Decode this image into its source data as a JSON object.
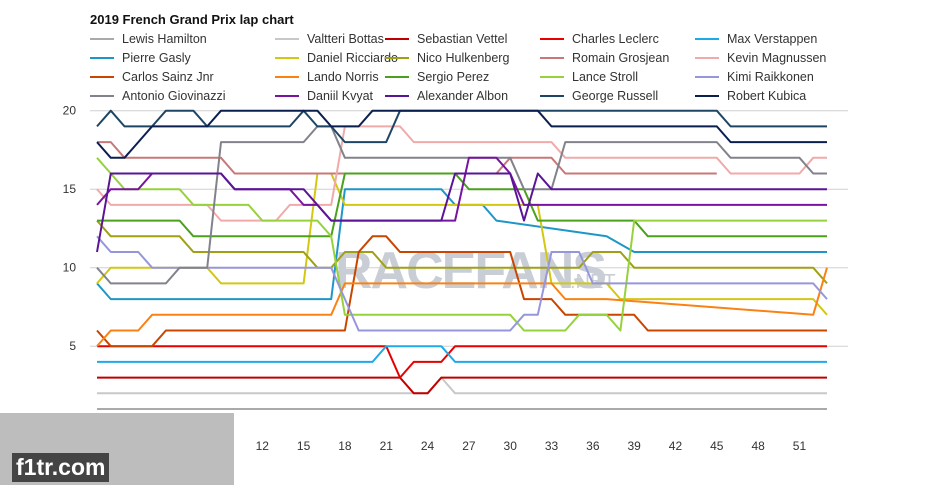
{
  "chart_data": {
    "type": "line",
    "title": "2019 French Grand Prix lap chart",
    "xlabel": "",
    "ylabel": "",
    "x_ticks": [
      12,
      15,
      18,
      21,
      24,
      27,
      30,
      33,
      36,
      39,
      42,
      45,
      48,
      51
    ],
    "y_ticks": [
      5,
      10,
      15,
      20
    ],
    "xlim": [
      0,
      53
    ],
    "ylim": [
      0.5,
      20.5
    ],
    "y_inverted": false,
    "grid": "horizontal",
    "legend_position": "top",
    "series": [
      {
        "name": "Lewis Hamilton",
        "color": "#aaaaaa",
        "points": [
          [
            0,
            1
          ],
          [
            53,
            1
          ]
        ]
      },
      {
        "name": "Valtteri Bottas",
        "color": "#c8c8c8",
        "points": [
          [
            0,
            2
          ],
          [
            24,
            2
          ],
          [
            25,
            3
          ],
          [
            26,
            2
          ],
          [
            53,
            2
          ]
        ]
      },
      {
        "name": "Sebastian Vettel",
        "color": "#c00000",
        "points": [
          [
            0,
            3
          ],
          [
            22,
            3
          ],
          [
            23,
            2
          ],
          [
            24,
            2
          ],
          [
            25,
            3
          ],
          [
            53,
            3
          ]
        ]
      },
      {
        "name": "Charles Leclerc",
        "color": "#e60000",
        "points": [
          [
            0,
            5
          ],
          [
            21,
            5
          ],
          [
            22,
            3
          ],
          [
            23,
            4
          ],
          [
            25,
            4
          ],
          [
            26,
            5
          ],
          [
            53,
            5
          ]
        ]
      },
      {
        "name": "Max Verstappen",
        "color": "#1eaae6",
        "points": [
          [
            0,
            4
          ],
          [
            20,
            4
          ],
          [
            21,
            5
          ],
          [
            25,
            5
          ],
          [
            26,
            4
          ],
          [
            53,
            4
          ]
        ]
      },
      {
        "name": "Pierre Gasly",
        "color": "#1e96c8",
        "points": [
          [
            0,
            9
          ],
          [
            1,
            8
          ],
          [
            17,
            8
          ],
          [
            18,
            15
          ],
          [
            25,
            15
          ],
          [
            26,
            14
          ],
          [
            28,
            14
          ],
          [
            29,
            13
          ],
          [
            37,
            12
          ],
          [
            39,
            11
          ],
          [
            53,
            11
          ]
        ]
      },
      {
        "name": "Daniel Ricciardo",
        "color": "#d2c814",
        "points": [
          [
            0,
            9
          ],
          [
            1,
            10
          ],
          [
            8,
            10
          ],
          [
            9,
            9
          ],
          [
            15,
            9
          ],
          [
            16,
            16
          ],
          [
            17,
            16
          ],
          [
            18,
            14
          ],
          [
            32,
            14
          ],
          [
            33,
            9
          ],
          [
            37,
            9
          ],
          [
            38,
            8
          ],
          [
            52,
            8
          ],
          [
            53,
            7
          ]
        ]
      },
      {
        "name": "Nico Hulkenberg",
        "color": "#a0a014",
        "points": [
          [
            0,
            13
          ],
          [
            1,
            12
          ],
          [
            6,
            12
          ],
          [
            7,
            11
          ],
          [
            15,
            11
          ],
          [
            16,
            10
          ],
          [
            17,
            10
          ],
          [
            18,
            11
          ],
          [
            20,
            11
          ],
          [
            21,
            10
          ],
          [
            30,
            10
          ],
          [
            31,
            10
          ],
          [
            35,
            10
          ],
          [
            36,
            11
          ],
          [
            38,
            11
          ],
          [
            39,
            10
          ],
          [
            52,
            10
          ],
          [
            53,
            9
          ]
        ]
      },
      {
        "name": "Romain Grosjean",
        "color": "#c87878",
        "points": [
          [
            0,
            18
          ],
          [
            1,
            18
          ],
          [
            2,
            17
          ],
          [
            9,
            17
          ],
          [
            10,
            16
          ],
          [
            21,
            16
          ],
          [
            22,
            16
          ],
          [
            28,
            16
          ],
          [
            29,
            16
          ],
          [
            30,
            17
          ],
          [
            33,
            17
          ],
          [
            34,
            16
          ],
          [
            45,
            16
          ]
        ]
      },
      {
        "name": "Kevin Magnussen",
        "color": "#f0aaaa",
        "points": [
          [
            0,
            15
          ],
          [
            1,
            14
          ],
          [
            8,
            14
          ],
          [
            9,
            13
          ],
          [
            13,
            13
          ],
          [
            14,
            14
          ],
          [
            17,
            14
          ],
          [
            18,
            19
          ],
          [
            22,
            19
          ],
          [
            23,
            18
          ],
          [
            33,
            18
          ],
          [
            34,
            17
          ],
          [
            45,
            17
          ],
          [
            46,
            16
          ],
          [
            51,
            16
          ],
          [
            52,
            17
          ],
          [
            53,
            17
          ]
        ]
      },
      {
        "name": "Carlos Sainz Jnr",
        "color": "#c84600",
        "points": [
          [
            0,
            6
          ],
          [
            1,
            5
          ],
          [
            4,
            5
          ],
          [
            5,
            6
          ],
          [
            10,
            6
          ],
          [
            11,
            6
          ],
          [
            18,
            6
          ],
          [
            19,
            11
          ],
          [
            20,
            12
          ],
          [
            21,
            12
          ],
          [
            22,
            11
          ],
          [
            30,
            11
          ],
          [
            31,
            8
          ],
          [
            33,
            8
          ],
          [
            34,
            7
          ],
          [
            39,
            7
          ],
          [
            40,
            6
          ],
          [
            53,
            6
          ]
        ]
      },
      {
        "name": "Lando Norris",
        "color": "#fa8214",
        "points": [
          [
            0,
            5
          ],
          [
            1,
            6
          ],
          [
            3,
            6
          ],
          [
            4,
            7
          ],
          [
            17,
            7
          ],
          [
            18,
            9
          ],
          [
            32,
            9
          ],
          [
            33,
            9
          ],
          [
            34,
            8
          ],
          [
            36,
            8
          ],
          [
            37,
            8
          ],
          [
            52,
            7
          ],
          [
            53,
            10
          ]
        ]
      },
      {
        "name": "Sergio Perez",
        "color": "#4ba01e",
        "points": [
          [
            0,
            13
          ],
          [
            1,
            13
          ],
          [
            6,
            13
          ],
          [
            7,
            12
          ],
          [
            17,
            12
          ],
          [
            18,
            16
          ],
          [
            26,
            16
          ],
          [
            27,
            15
          ],
          [
            31,
            15
          ],
          [
            32,
            13
          ],
          [
            39,
            13
          ],
          [
            40,
            12
          ],
          [
            53,
            12
          ]
        ]
      },
      {
        "name": "Lance Stroll",
        "color": "#96d23c",
        "points": [
          [
            0,
            17
          ],
          [
            1,
            16
          ],
          [
            2,
            15
          ],
          [
            6,
            15
          ],
          [
            7,
            14
          ],
          [
            11,
            14
          ],
          [
            12,
            13
          ],
          [
            16,
            13
          ],
          [
            17,
            12
          ],
          [
            18,
            7
          ],
          [
            22,
            7
          ],
          [
            23,
            7
          ],
          [
            30,
            7
          ],
          [
            31,
            6
          ],
          [
            34,
            6
          ],
          [
            35,
            7
          ],
          [
            37,
            7
          ],
          [
            38,
            6
          ],
          [
            39,
            13
          ],
          [
            53,
            13
          ]
        ]
      },
      {
        "name": "Kimi Raikkonen",
        "color": "#9696dc",
        "points": [
          [
            0,
            12
          ],
          [
            1,
            11
          ],
          [
            3,
            11
          ],
          [
            4,
            10
          ],
          [
            8,
            10
          ],
          [
            9,
            10
          ],
          [
            17,
            10
          ],
          [
            18,
            8
          ],
          [
            19,
            6
          ],
          [
            30,
            6
          ],
          [
            31,
            7
          ],
          [
            32,
            7
          ],
          [
            33,
            11
          ],
          [
            35,
            11
          ],
          [
            36,
            9
          ],
          [
            52,
            9
          ],
          [
            53,
            8
          ]
        ]
      },
      {
        "name": "Antonio Giovinazzi",
        "color": "#82828c",
        "points": [
          [
            0,
            10
          ],
          [
            1,
            9
          ],
          [
            5,
            9
          ],
          [
            6,
            10
          ],
          [
            8,
            10
          ],
          [
            9,
            18
          ],
          [
            15,
            18
          ],
          [
            16,
            19
          ],
          [
            17,
            19
          ],
          [
            18,
            17
          ],
          [
            27,
            17
          ],
          [
            28,
            17
          ],
          [
            30,
            17
          ],
          [
            31,
            15
          ],
          [
            33,
            15
          ],
          [
            34,
            18
          ],
          [
            45,
            18
          ],
          [
            46,
            17
          ],
          [
            51,
            17
          ],
          [
            52,
            16
          ],
          [
            53,
            16
          ]
        ]
      },
      {
        "name": "Daniil Kvyat",
        "color": "#7814a0",
        "points": [
          [
            0,
            14
          ],
          [
            1,
            15
          ],
          [
            3,
            15
          ],
          [
            4,
            16
          ],
          [
            9,
            16
          ],
          [
            10,
            15
          ],
          [
            14,
            15
          ],
          [
            15,
            14
          ],
          [
            16,
            14
          ],
          [
            17,
            13
          ],
          [
            26,
            13
          ],
          [
            27,
            17
          ],
          [
            29,
            17
          ],
          [
            30,
            16
          ],
          [
            31,
            14
          ],
          [
            53,
            14
          ]
        ]
      },
      {
        "name": "Alexander Albon",
        "color": "#5a1496",
        "points": [
          [
            0,
            11
          ],
          [
            1,
            16
          ],
          [
            8,
            16
          ],
          [
            9,
            16
          ],
          [
            10,
            15
          ],
          [
            14,
            15
          ],
          [
            15,
            15
          ],
          [
            16,
            14
          ],
          [
            17,
            13
          ],
          [
            25,
            13
          ],
          [
            26,
            16
          ],
          [
            30,
            16
          ],
          [
            31,
            13
          ],
          [
            32,
            16
          ],
          [
            33,
            15
          ],
          [
            53,
            15
          ]
        ]
      },
      {
        "name": "George Russell",
        "color": "#1e4664",
        "points": [
          [
            0,
            19
          ],
          [
            1,
            20
          ],
          [
            2,
            19
          ],
          [
            4,
            19
          ],
          [
            5,
            20
          ],
          [
            7,
            20
          ],
          [
            8,
            19
          ],
          [
            14,
            19
          ],
          [
            15,
            20
          ],
          [
            16,
            19
          ],
          [
            17,
            19
          ],
          [
            18,
            18
          ],
          [
            21,
            18
          ],
          [
            22,
            20
          ],
          [
            25,
            20
          ],
          [
            26,
            20
          ],
          [
            32,
            20
          ],
          [
            33,
            20
          ],
          [
            45,
            20
          ],
          [
            46,
            19
          ],
          [
            53,
            19
          ]
        ]
      },
      {
        "name": "Robert Kubica",
        "color": "#0a1e50",
        "points": [
          [
            0,
            18
          ],
          [
            1,
            17
          ],
          [
            2,
            17
          ],
          [
            3,
            18
          ],
          [
            4,
            19
          ],
          [
            8,
            19
          ],
          [
            9,
            20
          ],
          [
            12,
            20
          ],
          [
            15,
            20
          ],
          [
            16,
            20
          ],
          [
            17,
            19
          ],
          [
            18,
            19
          ],
          [
            19,
            19
          ],
          [
            20,
            20
          ],
          [
            32,
            20
          ],
          [
            33,
            19
          ],
          [
            45,
            19
          ],
          [
            46,
            18
          ],
          [
            53,
            18
          ]
        ]
      }
    ]
  },
  "watermark": {
    "main": "RACEFANS",
    "suffix": ".NET"
  },
  "badge": {
    "label": "f1tr.com"
  }
}
